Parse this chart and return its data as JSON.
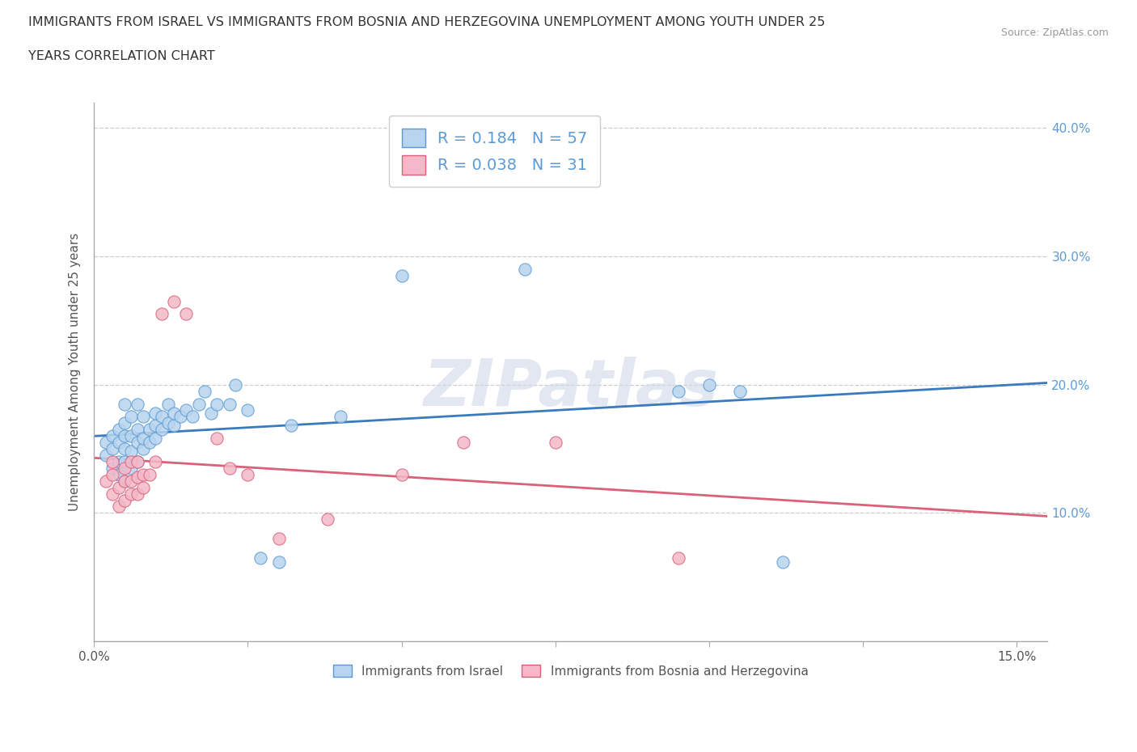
{
  "title_line1": "IMMIGRANTS FROM ISRAEL VS IMMIGRANTS FROM BOSNIA AND HERZEGOVINA UNEMPLOYMENT AMONG YOUTH UNDER 25",
  "title_line2": "YEARS CORRELATION CHART",
  "source_text": "Source: ZipAtlas.com",
  "ylabel": "Unemployment Among Youth under 25 years",
  "xlim": [
    0.0,
    0.155
  ],
  "ylim": [
    0.0,
    0.42
  ],
  "background_color": "#ffffff",
  "grid_color": "#cccccc",
  "legend_R1": "0.184",
  "legend_N1": "57",
  "legend_R2": "0.038",
  "legend_N2": "31",
  "series1_color": "#b8d4ee",
  "series1_edge": "#5b9bd5",
  "series2_color": "#f4b8c8",
  "series2_edge": "#d9627a",
  "line1_color": "#3a7abf",
  "line2_color": "#d9627a",
  "series1_label": "Immigrants from Israel",
  "series2_label": "Immigrants from Bosnia and Herzegovina",
  "ytick_color": "#5b9bd5",
  "axis_color": "#555555",
  "israel_x": [
    0.002,
    0.002,
    0.003,
    0.003,
    0.003,
    0.004,
    0.004,
    0.004,
    0.004,
    0.005,
    0.005,
    0.005,
    0.005,
    0.005,
    0.005,
    0.006,
    0.006,
    0.006,
    0.006,
    0.007,
    0.007,
    0.007,
    0.007,
    0.008,
    0.008,
    0.008,
    0.009,
    0.009,
    0.01,
    0.01,
    0.01,
    0.011,
    0.011,
    0.012,
    0.012,
    0.013,
    0.013,
    0.014,
    0.015,
    0.016,
    0.017,
    0.018,
    0.019,
    0.02,
    0.022,
    0.023,
    0.025,
    0.027,
    0.03,
    0.032,
    0.04,
    0.05,
    0.07,
    0.095,
    0.1,
    0.105,
    0.112
  ],
  "israel_y": [
    0.145,
    0.155,
    0.135,
    0.15,
    0.16,
    0.13,
    0.14,
    0.155,
    0.165,
    0.125,
    0.14,
    0.15,
    0.16,
    0.17,
    0.185,
    0.135,
    0.148,
    0.16,
    0.175,
    0.14,
    0.155,
    0.165,
    0.185,
    0.15,
    0.158,
    0.175,
    0.155,
    0.165,
    0.158,
    0.168,
    0.178,
    0.165,
    0.175,
    0.17,
    0.185,
    0.168,
    0.178,
    0.175,
    0.18,
    0.175,
    0.185,
    0.195,
    0.178,
    0.185,
    0.185,
    0.2,
    0.18,
    0.065,
    0.062,
    0.168,
    0.175,
    0.285,
    0.29,
    0.195,
    0.2,
    0.195,
    0.062
  ],
  "bosnia_x": [
    0.002,
    0.003,
    0.003,
    0.003,
    0.004,
    0.004,
    0.005,
    0.005,
    0.005,
    0.006,
    0.006,
    0.006,
    0.007,
    0.007,
    0.007,
    0.008,
    0.008,
    0.009,
    0.01,
    0.011,
    0.013,
    0.015,
    0.02,
    0.022,
    0.025,
    0.03,
    0.038,
    0.05,
    0.06,
    0.075,
    0.095
  ],
  "bosnia_y": [
    0.125,
    0.115,
    0.13,
    0.14,
    0.105,
    0.12,
    0.11,
    0.125,
    0.135,
    0.115,
    0.125,
    0.14,
    0.115,
    0.128,
    0.14,
    0.12,
    0.13,
    0.13,
    0.14,
    0.255,
    0.265,
    0.255,
    0.158,
    0.135,
    0.13,
    0.08,
    0.095,
    0.13,
    0.155,
    0.155,
    0.065
  ]
}
